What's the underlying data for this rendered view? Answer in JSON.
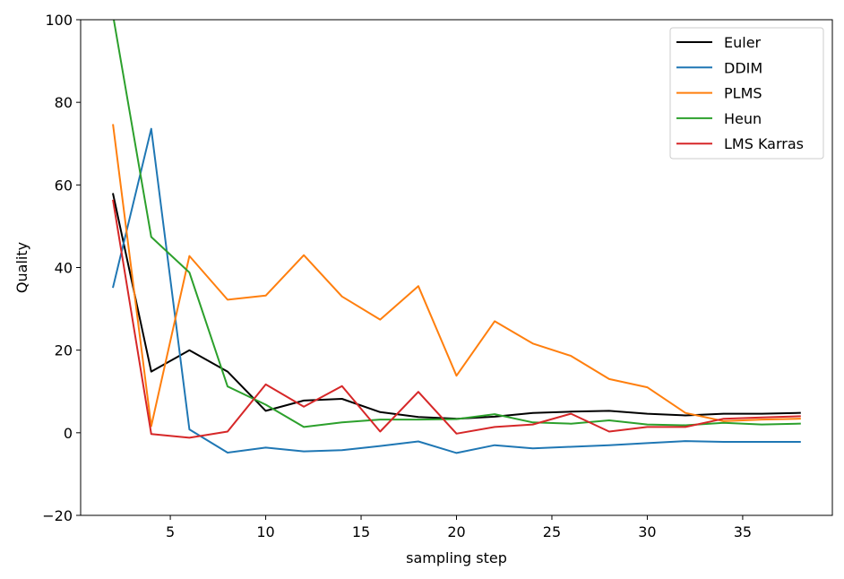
{
  "chart_data": {
    "type": "line",
    "xlabel": "sampling step",
    "ylabel": "Quality",
    "xlim": [
      0.3,
      39.7
    ],
    "ylim": [
      -20,
      100
    ],
    "xticks": [
      5,
      10,
      15,
      20,
      25,
      30,
      35
    ],
    "yticks": [
      -20,
      0,
      20,
      40,
      60,
      80,
      100
    ],
    "grid": false,
    "legend_position": "top-right",
    "x": [
      2,
      4,
      6,
      8,
      10,
      12,
      14,
      16,
      18,
      20,
      22,
      24,
      26,
      28,
      30,
      32,
      34,
      36,
      38
    ],
    "series": [
      {
        "name": "Euler",
        "color": "#000000",
        "values": [
          57.8,
          14.8,
          20.0,
          14.8,
          5.3,
          7.8,
          8.2,
          5.0,
          3.8,
          3.4,
          3.9,
          4.8,
          5.1,
          5.3,
          4.6,
          4.2,
          4.6,
          4.6,
          4.8
        ]
      },
      {
        "name": "DDIM",
        "color": "#1f77b4",
        "values": [
          35.3,
          73.6,
          0.8,
          -4.8,
          -3.6,
          -4.5,
          -4.2,
          -3.2,
          -2.1,
          -4.9,
          -3.0,
          -3.8,
          -3.4,
          -3.0,
          -2.5,
          -2.0,
          -2.2,
          -2.2,
          -2.2
        ]
      },
      {
        "name": "PLMS",
        "color": "#ff7f0e",
        "values": [
          74.5,
          1.6,
          42.8,
          32.2,
          33.2,
          43.0,
          33.0,
          27.4,
          35.5,
          13.8,
          27.0,
          21.6,
          18.6,
          13.0,
          11.0,
          4.8,
          2.8,
          3.2,
          3.4
        ]
      },
      {
        "name": "Heun",
        "color": "#2ca02c",
        "values": [
          101.0,
          47.4,
          38.8,
          11.2,
          6.8,
          1.4,
          2.5,
          3.2,
          3.2,
          3.3,
          4.5,
          2.5,
          2.2,
          3.0,
          2.0,
          1.8,
          2.4,
          2.0,
          2.2
        ]
      },
      {
        "name": "LMS Karras",
        "color": "#d62728",
        "values": [
          56.2,
          -0.3,
          -1.2,
          0.3,
          11.7,
          6.3,
          11.3,
          0.3,
          9.9,
          -0.2,
          1.4,
          2.0,
          4.6,
          0.3,
          1.4,
          1.4,
          3.4,
          3.7,
          4.0
        ]
      }
    ]
  }
}
